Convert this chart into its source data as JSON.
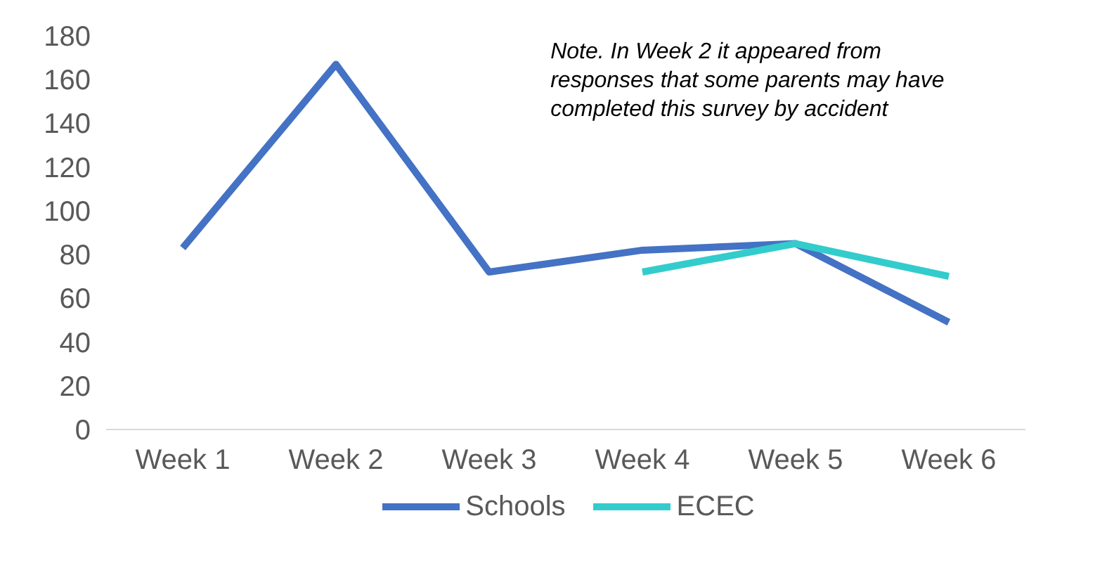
{
  "chart_data": {
    "type": "line",
    "categories": [
      "Week 1",
      "Week 2",
      "Week 3",
      "Week 4",
      "Week 5",
      "Week 6"
    ],
    "series": [
      {
        "name": "Schools",
        "color": "#4472c4",
        "values": [
          83,
          167,
          72,
          82,
          85,
          49
        ]
      },
      {
        "name": "ECEC",
        "color": "#33cccc",
        "values": [
          null,
          null,
          null,
          72,
          85,
          70
        ]
      }
    ],
    "ylim": [
      0,
      180
    ],
    "yticks": [
      0,
      20,
      40,
      60,
      80,
      100,
      120,
      140,
      160,
      180
    ],
    "grid": false,
    "legend": "bottom",
    "marker": "none",
    "line_style": "solid",
    "annotations": [
      "Note. In Week 2 it appeared from responses that some parents may have completed this survey by accident"
    ]
  }
}
